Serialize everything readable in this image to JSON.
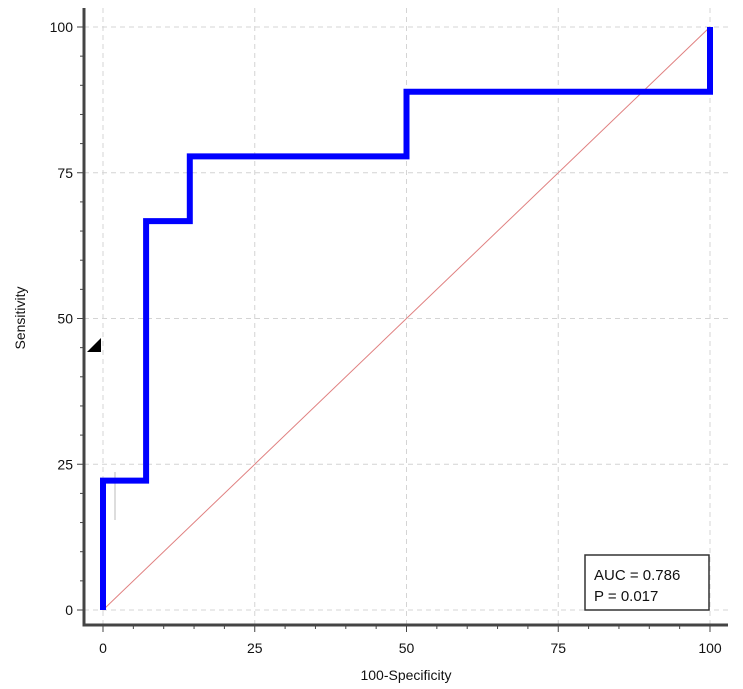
{
  "chart_data": {
    "type": "line",
    "xlabel": "100-Specificity",
    "ylabel": "Sensitivity",
    "xlim": [
      0,
      100
    ],
    "ylim": [
      0,
      100
    ],
    "x_ticks": [
      0,
      25,
      50,
      75,
      100
    ],
    "y_ticks": [
      0,
      25,
      50,
      75,
      100
    ],
    "grid": true,
    "series": [
      {
        "color": "#0000ff",
        "step": true,
        "x": [
          0,
          0,
          7.1,
          7.1,
          14.3,
          14.3,
          50,
          50,
          100,
          100
        ],
        "y": [
          0,
          22.2,
          22.2,
          66.7,
          66.7,
          77.8,
          77.8,
          88.9,
          88.9,
          100
        ]
      },
      {
        "color": "#e08080",
        "x": [
          0,
          100
        ],
        "y": [
          0,
          100
        ]
      }
    ],
    "annotations": {
      "auc": "AUC = 0.786",
      "p": "P = 0.017"
    }
  }
}
